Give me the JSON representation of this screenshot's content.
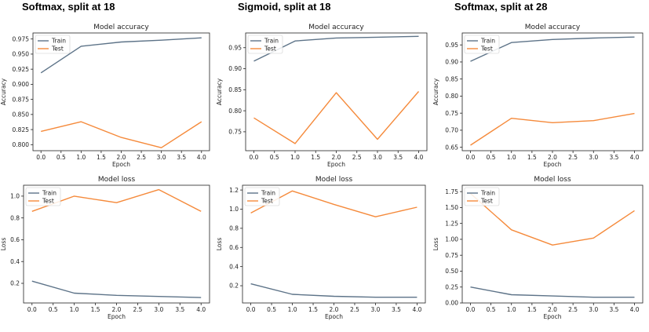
{
  "columns": [
    {
      "title": "Softmax, split at 18"
    },
    {
      "title": "Sigmoid, split at 18"
    },
    {
      "title": "Softmax, split at 28"
    }
  ],
  "colors": {
    "train": "#5d7388",
    "test": "#f58a3b"
  },
  "chart_data": [
    {
      "type": "line",
      "title": "Model accuracy",
      "xlabel": "Epoch",
      "ylabel": "Accuracy",
      "x": [
        0,
        1,
        2,
        3,
        4
      ],
      "series": [
        {
          "name": "Train",
          "values": [
            0.919,
            0.963,
            0.97,
            0.973,
            0.977
          ]
        },
        {
          "name": "Test",
          "values": [
            0.822,
            0.838,
            0.812,
            0.795,
            0.838
          ]
        }
      ],
      "xlim": [
        -0.2,
        4.2
      ],
      "ylim": [
        0.79,
        0.985
      ],
      "xticks": [
        "0.0",
        "0.5",
        "1.0",
        "1.5",
        "2.0",
        "2.5",
        "3.0",
        "3.5",
        "4.0"
      ],
      "yticks": [
        "0.800",
        "0.825",
        "0.850",
        "0.875",
        "0.900",
        "0.925",
        "0.950",
        "0.975"
      ],
      "legend": "upper-left"
    },
    {
      "type": "line",
      "title": "Model loss",
      "xlabel": "Epoch",
      "ylabel": "Loss",
      "x": [
        0,
        1,
        2,
        3,
        4
      ],
      "series": [
        {
          "name": "Train",
          "values": [
            0.22,
            0.11,
            0.09,
            0.08,
            0.07
          ]
        },
        {
          "name": "Test",
          "values": [
            0.86,
            1.0,
            0.94,
            1.06,
            0.86
          ]
        }
      ],
      "xlim": [
        -0.2,
        4.2
      ],
      "ylim": [
        0.02,
        1.1
      ],
      "xticks": [
        "0.0",
        "0.5",
        "1.0",
        "1.5",
        "2.0",
        "2.5",
        "3.0",
        "3.5",
        "4.0"
      ],
      "yticks": [
        "0.2",
        "0.4",
        "0.6",
        "0.8",
        "1.0"
      ],
      "legend": "upper-left"
    },
    {
      "type": "line",
      "title": "Model accuracy",
      "xlabel": "Epoch",
      "ylabel": "Accuracy",
      "x": [
        0,
        1,
        2,
        3,
        4
      ],
      "series": [
        {
          "name": "Train",
          "values": [
            0.918,
            0.966,
            0.973,
            0.975,
            0.977
          ]
        },
        {
          "name": "Test",
          "values": [
            0.783,
            0.722,
            0.843,
            0.732,
            0.846
          ]
        }
      ],
      "xlim": [
        -0.2,
        4.2
      ],
      "ylim": [
        0.705,
        0.985
      ],
      "xticks": [
        "0.0",
        "0.5",
        "1.0",
        "1.5",
        "2.0",
        "2.5",
        "3.0",
        "3.5",
        "4.0"
      ],
      "yticks": [
        "0.75",
        "0.80",
        "0.85",
        "0.90",
        "0.95"
      ],
      "legend": "upper-left"
    },
    {
      "type": "line",
      "title": "Model loss",
      "xlabel": "Epoch",
      "ylabel": "Loss",
      "x": [
        0,
        1,
        2,
        3,
        4
      ],
      "series": [
        {
          "name": "Train",
          "values": [
            0.22,
            0.11,
            0.09,
            0.08,
            0.08
          ]
        },
        {
          "name": "Test",
          "values": [
            0.96,
            1.19,
            1.05,
            0.92,
            1.02
          ]
        }
      ],
      "xlim": [
        -0.2,
        4.2
      ],
      "ylim": [
        0.02,
        1.25
      ],
      "xticks": [
        "0.0",
        "0.5",
        "1.0",
        "1.5",
        "2.0",
        "2.5",
        "3.0",
        "3.5",
        "4.0"
      ],
      "yticks": [
        "0.0",
        "0.2",
        "0.4",
        "0.6",
        "0.8",
        "1.0",
        "1.2"
      ],
      "legend": "upper-left"
    },
    {
      "type": "line",
      "title": "Model accuracy",
      "xlabel": "Epoch",
      "ylabel": "Accuracy",
      "x": [
        0,
        1,
        2,
        3,
        4
      ],
      "series": [
        {
          "name": "Train",
          "values": [
            0.902,
            0.957,
            0.966,
            0.97,
            0.973
          ]
        },
        {
          "name": "Test",
          "values": [
            0.656,
            0.735,
            0.722,
            0.728,
            0.749
          ]
        }
      ],
      "xlim": [
        -0.2,
        4.2
      ],
      "ylim": [
        0.64,
        0.985
      ],
      "xticks": [
        "0.0",
        "0.5",
        "1.0",
        "1.5",
        "2.0",
        "2.5",
        "3.0",
        "3.5",
        "4.0"
      ],
      "yticks": [
        "0.65",
        "0.70",
        "0.75",
        "0.80",
        "0.85",
        "0.90",
        "0.95"
      ],
      "legend": "upper-left"
    },
    {
      "type": "line",
      "title": "Model loss",
      "xlabel": "Epoch",
      "ylabel": "Loss",
      "x": [
        0,
        1,
        2,
        3,
        4
      ],
      "series": [
        {
          "name": "Train",
          "values": [
            0.25,
            0.13,
            0.11,
            0.09,
            0.09
          ]
        },
        {
          "name": "Test",
          "values": [
            1.72,
            1.15,
            0.91,
            1.02,
            1.45
          ]
        }
      ],
      "xlim": [
        -0.2,
        4.2
      ],
      "ylim": [
        0.0,
        1.85
      ],
      "xticks": [
        "0.0",
        "0.5",
        "1.0",
        "1.5",
        "2.0",
        "2.5",
        "3.0",
        "3.5",
        "4.0"
      ],
      "yticks": [
        "0.00",
        "0.25",
        "0.50",
        "0.75",
        "1.00",
        "1.25",
        "1.50",
        "1.75"
      ],
      "legend": "upper-left"
    }
  ]
}
